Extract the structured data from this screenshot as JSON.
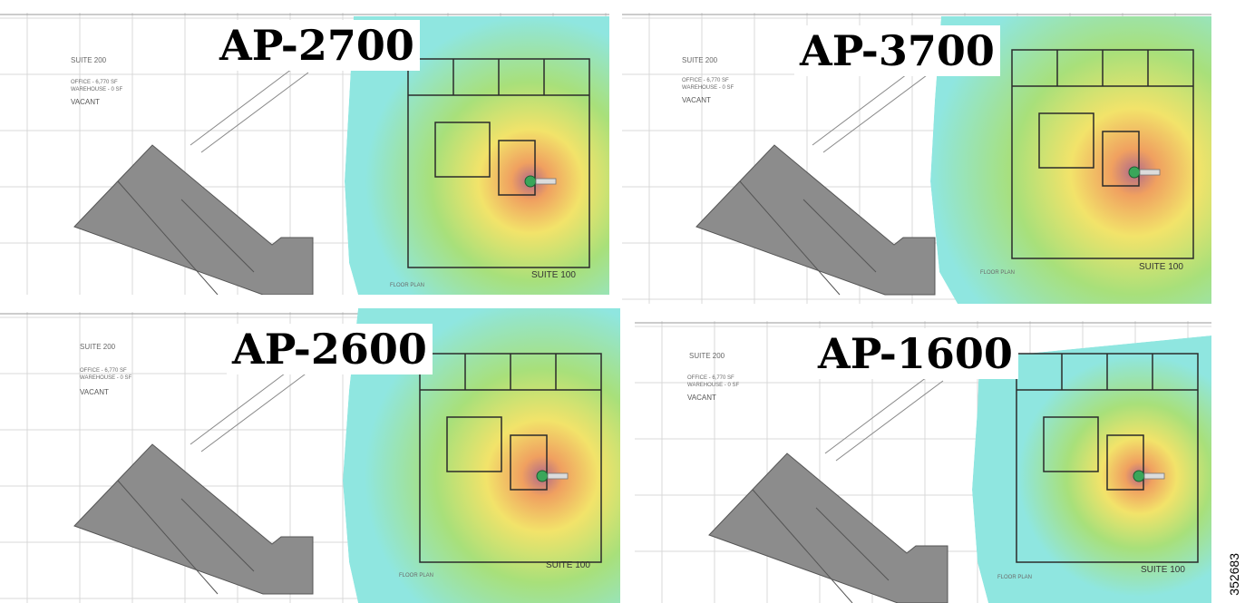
{
  "figure_id": "352683",
  "colors": {
    "heat_far": "#8fe6e0",
    "heat_mid": "#a8e07a",
    "heat_warm": "#f2e36a",
    "heat_hot": "#f0a060",
    "heat_core": "#b06a8a",
    "building": "#8c8c8c",
    "grid": "#d8d8d8",
    "walls": "#2b2b2b",
    "ap_marker": "#3aa65a"
  },
  "panels": [
    {
      "id": "ap-2700",
      "title": "AP-2700",
      "suite_main": "SUITE 200",
      "office_line": "OFFICE - 6,770 SF",
      "warehouse_line": "WAREHOUSE - 0 SF",
      "vacant": "VACANT",
      "suite_secondary": "SUITE 100",
      "floor_plan_label": "FLOOR PLAN",
      "ap_icon": "access-point-icon"
    },
    {
      "id": "ap-3700",
      "title": "AP-3700",
      "suite_main": "SUITE 200",
      "office_line": "OFFICE - 6,770 SF",
      "warehouse_line": "WAREHOUSE - 0 SF",
      "vacant": "VACANT",
      "suite_secondary": "SUITE 100",
      "floor_plan_label": "FLOOR PLAN",
      "ap_icon": "access-point-icon"
    },
    {
      "id": "ap-2600",
      "title": "AP-2600",
      "suite_main": "SUITE 200",
      "office_line": "OFFICE - 6,770 SF",
      "warehouse_line": "WAREHOUSE - 0 SF",
      "vacant": "VACANT",
      "suite_secondary": "SUITE 100",
      "floor_plan_label": "FLOOR PLAN",
      "ap_icon": "access-point-icon"
    },
    {
      "id": "ap-1600",
      "title": "AP-1600",
      "suite_main": "SUITE 200",
      "office_line": "OFFICE - 6,770 SF",
      "warehouse_line": "WAREHOUSE - 0 SF",
      "vacant": "VACANT",
      "suite_secondary": "SUITE 100",
      "floor_plan_label": "FLOOR PLAN",
      "ap_icon": "access-point-icon"
    }
  ]
}
